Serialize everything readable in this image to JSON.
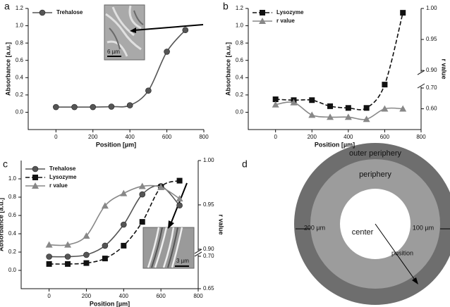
{
  "chart_data": [
    {
      "type": "line",
      "panel": "a",
      "xlabel": "Position [µm]",
      "ylabel": "Absorbance [a.u.]",
      "xlim": [
        -150,
        800
      ],
      "xticks": [
        0,
        200,
        400,
        600,
        800
      ],
      "ylim": [
        -0.2,
        1.2
      ],
      "yticks": [
        {
          "value": 0,
          "label": "0.0"
        },
        0.2,
        0.4,
        0.6,
        0.8,
        {
          "value": 1,
          "label": "1.0"
        },
        1.2
      ],
      "legend": "upper left",
      "inset_scale": "6 µm",
      "series": [
        {
          "name": "Trehalose",
          "color": "#555555",
          "marker": "circle",
          "dashed": false,
          "x": [
            0,
            100,
            200,
            300,
            400,
            500,
            600,
            700
          ],
          "values": [
            0.06,
            0.06,
            0.06,
            0.065,
            0.08,
            0.25,
            0.7,
            0.95
          ]
        }
      ]
    },
    {
      "type": "line",
      "panel": "b",
      "xlabel": "Position [µm]",
      "ylabel": "Absorbance [a.u.]",
      "y2label": "r value",
      "xlim": [
        -150,
        800
      ],
      "xticks": [
        0,
        200,
        400,
        600,
        800
      ],
      "ylim": [
        -0.2,
        1.2
      ],
      "yticks": [
        {
          "value": 0,
          "label": "0.0"
        },
        0.2,
        0.4,
        0.6,
        0.8,
        {
          "value": 1,
          "label": "1.0"
        },
        1.2
      ],
      "y2lim": [
        0.5,
        1.0
      ],
      "y2break": [
        0.7,
        0.9
      ],
      "y2ticks": [
        {
          "value": 0.6,
          "label": "0.60"
        },
        {
          "value": 0.7,
          "label": "0.70"
        },
        {
          "value": 0.9,
          "label": "0.90"
        },
        0.95,
        {
          "value": 1,
          "label": "1.00"
        }
      ],
      "legend": "upper left",
      "series": [
        {
          "name": "Lysozyme",
          "color": "#111111",
          "marker": "square",
          "dashed": true,
          "x": [
            0,
            100,
            200,
            300,
            400,
            500,
            600,
            700
          ],
          "values": [
            0.15,
            0.14,
            0.14,
            0.07,
            0.05,
            0.05,
            0.32,
            1.15
          ]
        },
        {
          "name": "r value",
          "color": "#888888",
          "marker": "triangle",
          "dashed": false,
          "axis": "y2",
          "x": [
            0,
            100,
            200,
            300,
            400,
            500,
            600,
            700
          ],
          "values": [
            0.62,
            0.63,
            0.57,
            0.56,
            0.56,
            0.55,
            0.6,
            0.6
          ]
        }
      ]
    },
    {
      "type": "line",
      "panel": "c",
      "xlabel": "Position [µm]",
      "ylabel": "Absorbance [a.u.]",
      "y2label": "r value",
      "xlim": [
        -150,
        800
      ],
      "xticks": [
        0,
        200,
        400,
        600,
        800
      ],
      "ylim": [
        -0.2,
        1.2
      ],
      "yticks": [
        {
          "value": 0,
          "label": "0.0"
        },
        0.2,
        0.4,
        0.6,
        0.8,
        {
          "value": 1,
          "label": "1.0"
        }
      ],
      "y2lim": [
        0.65,
        1.0
      ],
      "y2break": [
        0.7,
        0.9
      ],
      "y2ticks": [
        0.65,
        {
          "value": 0.7,
          "label": "0.70"
        },
        {
          "value": 0.9,
          "label": "0.90"
        },
        0.95,
        {
          "value": 1,
          "label": "1.00"
        }
      ],
      "legend": "upper left",
      "inset_scale": "3 µm",
      "series": [
        {
          "name": "Trehalose",
          "color": "#555555",
          "marker": "circle",
          "dashed": false,
          "x": [
            0,
            100,
            200,
            300,
            400,
            500,
            600,
            700
          ],
          "values": [
            0.15,
            0.15,
            0.17,
            0.27,
            0.5,
            0.83,
            0.92,
            0.71
          ]
        },
        {
          "name": "Lysozyme",
          "color": "#111111",
          "marker": "square",
          "dashed": true,
          "x": [
            0,
            100,
            200,
            300,
            400,
            500,
            600,
            700
          ],
          "values": [
            0.07,
            0.07,
            0.08,
            0.13,
            0.27,
            0.53,
            0.91,
            0.98
          ]
        },
        {
          "name": "r value",
          "color": "#888888",
          "marker": "triangle",
          "dashed": false,
          "axis": "y2",
          "x": [
            0,
            100,
            200,
            300,
            400,
            500,
            600,
            700
          ],
          "values": [
            0.905,
            0.905,
            0.915,
            0.949,
            0.963,
            0.971,
            0.97,
            0.957
          ]
        }
      ]
    }
  ],
  "diagram": {
    "panel": "d",
    "outer": "outer periphery",
    "middle": "periphery",
    "inner": "center",
    "left_width": "200 µm",
    "right_width": "100 µm",
    "arrow": "position"
  }
}
